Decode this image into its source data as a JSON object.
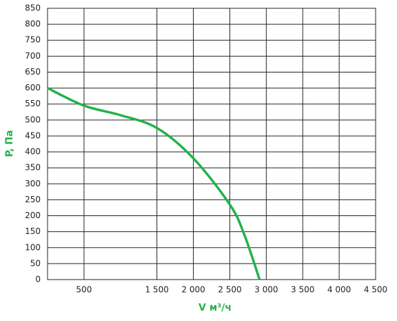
{
  "chart_data": {
    "type": "line",
    "xlabel": "V м³/ч",
    "ylabel": "P, Па",
    "x": [
      0,
      500,
      1000,
      1500,
      2000,
      2500,
      2700,
      2908
    ],
    "series": [
      {
        "color": "#22b24c",
        "values": [
          600,
          545,
          515,
          475,
          380,
          235,
          140,
          0
        ]
      }
    ],
    "xlim": [
      0,
      4500
    ],
    "xticks": [
      500,
      {
        "value": 1500,
        "label": "1 500"
      },
      {
        "value": 2000,
        "label": "2 000"
      },
      {
        "value": 2500,
        "label": "2 500"
      },
      {
        "value": 3000,
        "label": "3 000"
      },
      {
        "value": 3500,
        "label": "3 500"
      },
      {
        "value": 4000,
        "label": "4 000"
      },
      {
        "value": 4500,
        "label": "4 500"
      }
    ],
    "ylim": [
      0,
      850
    ],
    "yticks": [
      0,
      50,
      100,
      150,
      200,
      250,
      300,
      350,
      400,
      450,
      500,
      550,
      600,
      650,
      700,
      750,
      800,
      850
    ],
    "grid": true
  }
}
